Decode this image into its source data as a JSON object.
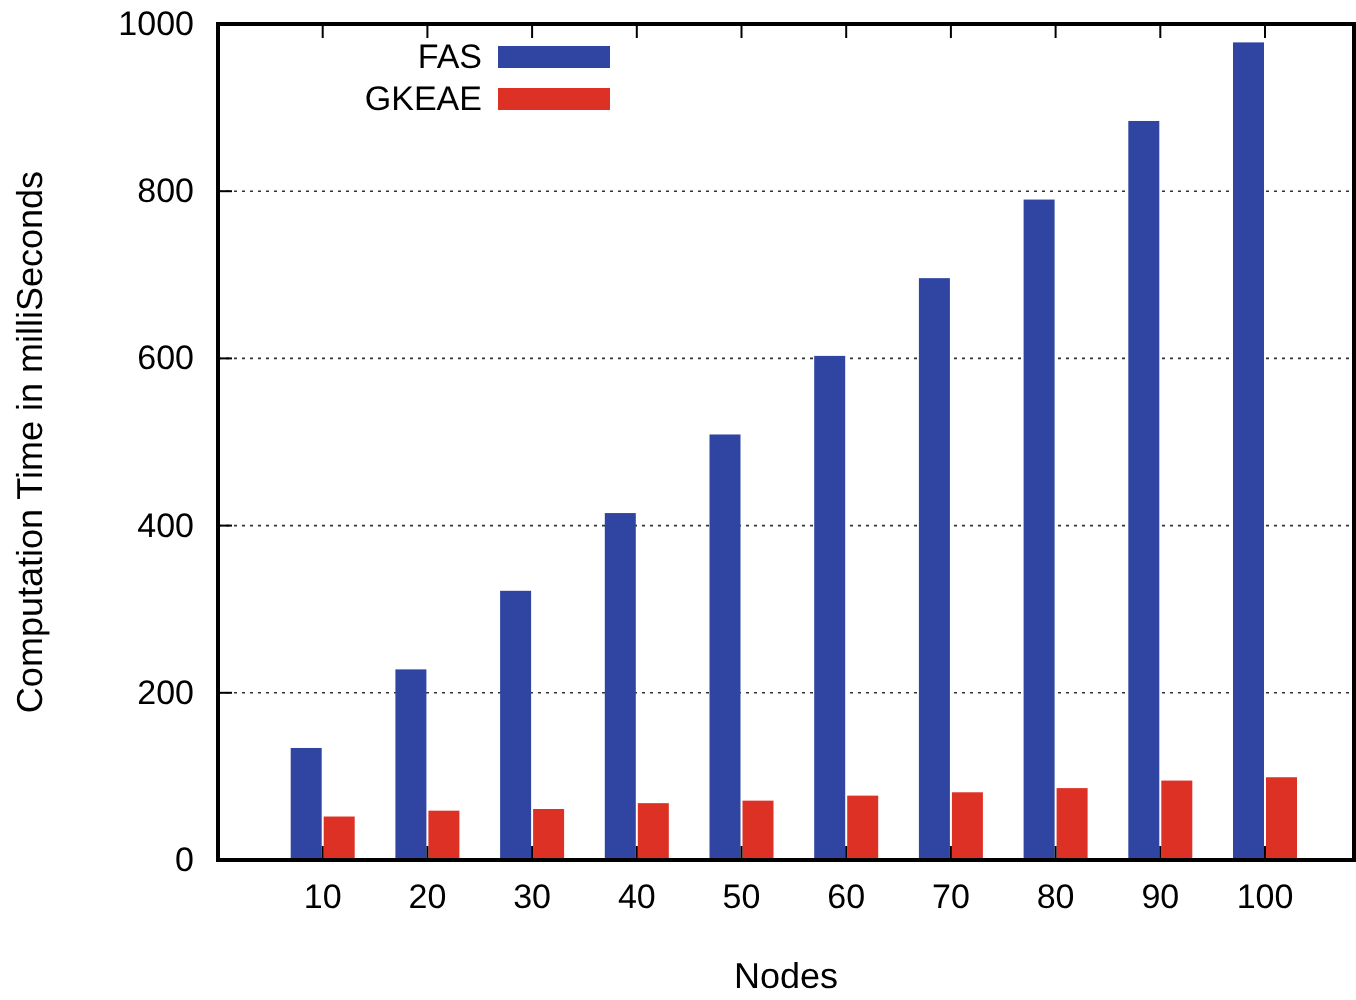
{
  "chart_data": {
    "type": "bar",
    "xlabel": "Nodes",
    "ylabel": "Computation Time in milliSeconds",
    "categories": [
      "10",
      "20",
      "30",
      "40",
      "50",
      "60",
      "70",
      "80",
      "90",
      "100"
    ],
    "series": [
      {
        "name": "FAS",
        "color": "#2f45a1",
        "values": [
          134,
          228,
          322,
          415,
          509,
          603,
          696,
          790,
          884,
          978
        ]
      },
      {
        "name": "GKEAE",
        "color": "#de3125",
        "values": [
          52,
          59,
          61,
          68,
          71,
          77,
          81,
          86,
          95,
          99
        ]
      }
    ],
    "ylim": [
      0,
      1000
    ],
    "yticks": [
      0,
      200,
      400,
      600,
      800,
      1000
    ],
    "grid": "y",
    "legend": "top left"
  }
}
